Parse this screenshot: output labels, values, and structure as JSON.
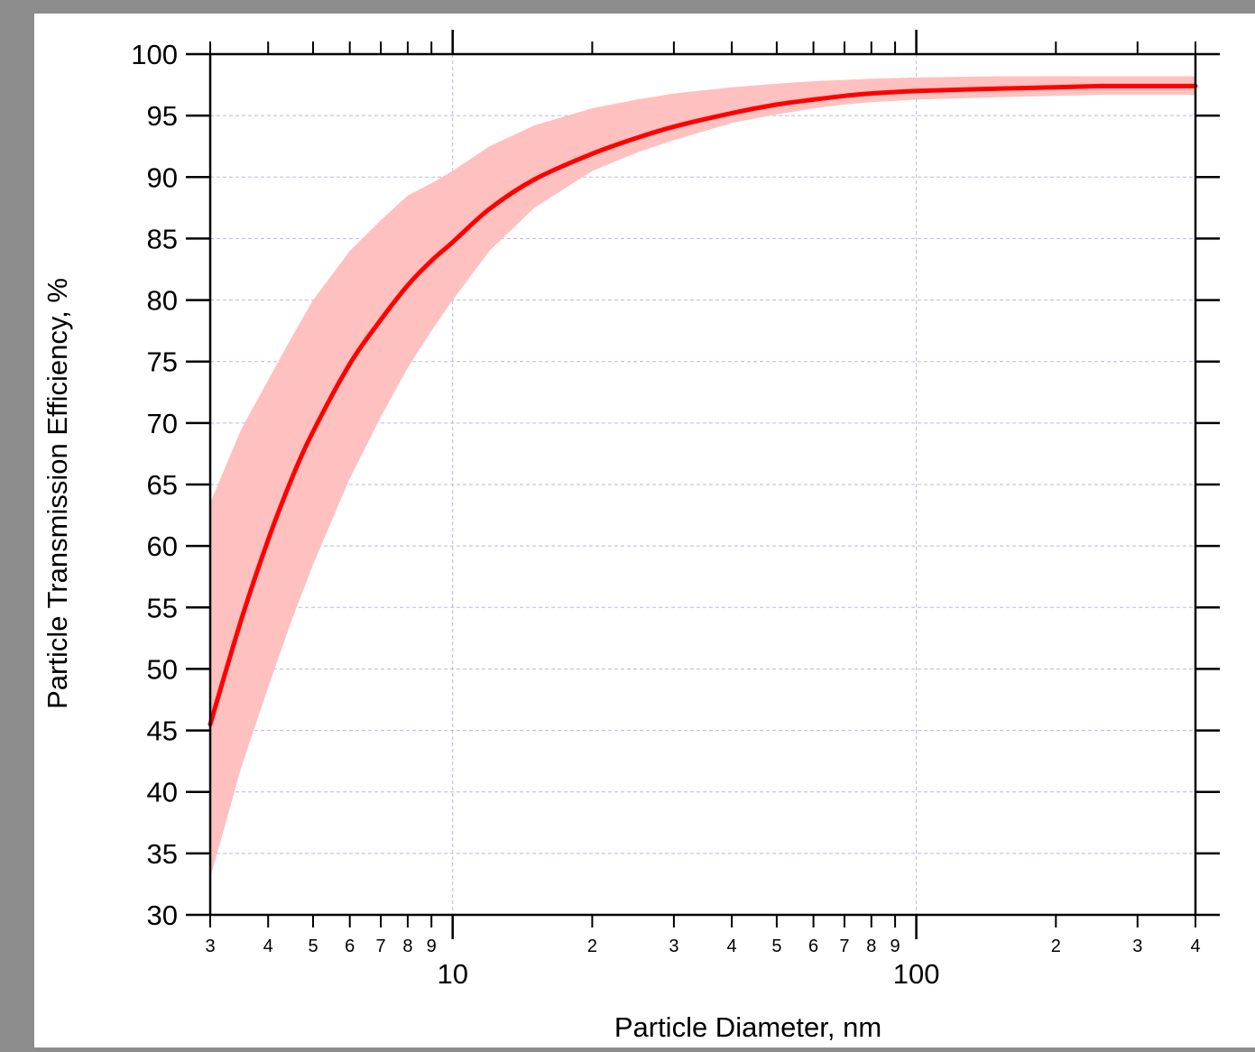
{
  "chart_data": {
    "type": "line",
    "title": "",
    "xlabel": "Particle Diameter, nm",
    "ylabel": "Particle Transmission Efficiency, %",
    "xscale": "log",
    "xlim": [
      3,
      400
    ],
    "ylim": [
      30,
      100
    ],
    "grid": true,
    "legend": "none",
    "y_ticks": [
      30,
      35,
      40,
      45,
      50,
      55,
      60,
      65,
      70,
      75,
      80,
      85,
      90,
      95,
      100
    ],
    "x_major_ticks": [
      10,
      100
    ],
    "x_minor_ticks": [
      3,
      4,
      5,
      6,
      7,
      8,
      9,
      20,
      30,
      40,
      50,
      60,
      70,
      80,
      90,
      200,
      300,
      400
    ],
    "x_major_labels": [
      "10",
      "100"
    ],
    "x_minor_labels": [
      "3",
      "4",
      "5",
      "6",
      "7",
      "8",
      "9",
      "2",
      "3",
      "4",
      "5",
      "6",
      "7",
      "8",
      "9",
      "2",
      "3",
      "4"
    ],
    "y_tick_labels": [
      "30",
      "35",
      "40",
      "45",
      "50",
      "55",
      "60",
      "65",
      "70",
      "75",
      "80",
      "85",
      "90",
      "95",
      "100"
    ],
    "series": [
      {
        "x": [
          3,
          3.5,
          4,
          4.5,
          5,
          6,
          7,
          8,
          9,
          10,
          12,
          15,
          20,
          25,
          30,
          40,
          50,
          60,
          70,
          80,
          100,
          150,
          200,
          250,
          300,
          400
        ],
        "y": [
          45.5,
          54,
          60.5,
          65.5,
          69.3,
          74.8,
          78.4,
          81.2,
          83.2,
          84.7,
          87.4,
          89.8,
          91.9,
          93.2,
          94.1,
          95.2,
          95.9,
          96.3,
          96.6,
          96.8,
          97.0,
          97.2,
          97.3,
          97.4,
          97.4,
          97.4
        ],
        "lower": [
          33,
          42,
          48.5,
          54,
          58.5,
          65.5,
          70.5,
          74.5,
          77.5,
          80,
          84,
          87.5,
          90.5,
          92,
          93,
          94.4,
          95.1,
          95.6,
          95.9,
          96.1,
          96.3,
          96.5,
          96.6,
          96.7,
          96.7,
          96.7
        ],
        "upper": [
          63.5,
          69.5,
          73.5,
          77,
          80,
          84,
          86.5,
          88.5,
          89.5,
          90.5,
          92.5,
          94.2,
          95.6,
          96.3,
          96.8,
          97.3,
          97.6,
          97.8,
          97.9,
          98.0,
          98.1,
          98.2,
          98.2,
          98.2,
          98.2,
          98.2
        ]
      }
    ],
    "colors": {
      "line": "#ff0000",
      "band": "#ffc0c0",
      "grid": "#b8b8e6",
      "axis": "#000000"
    }
  }
}
